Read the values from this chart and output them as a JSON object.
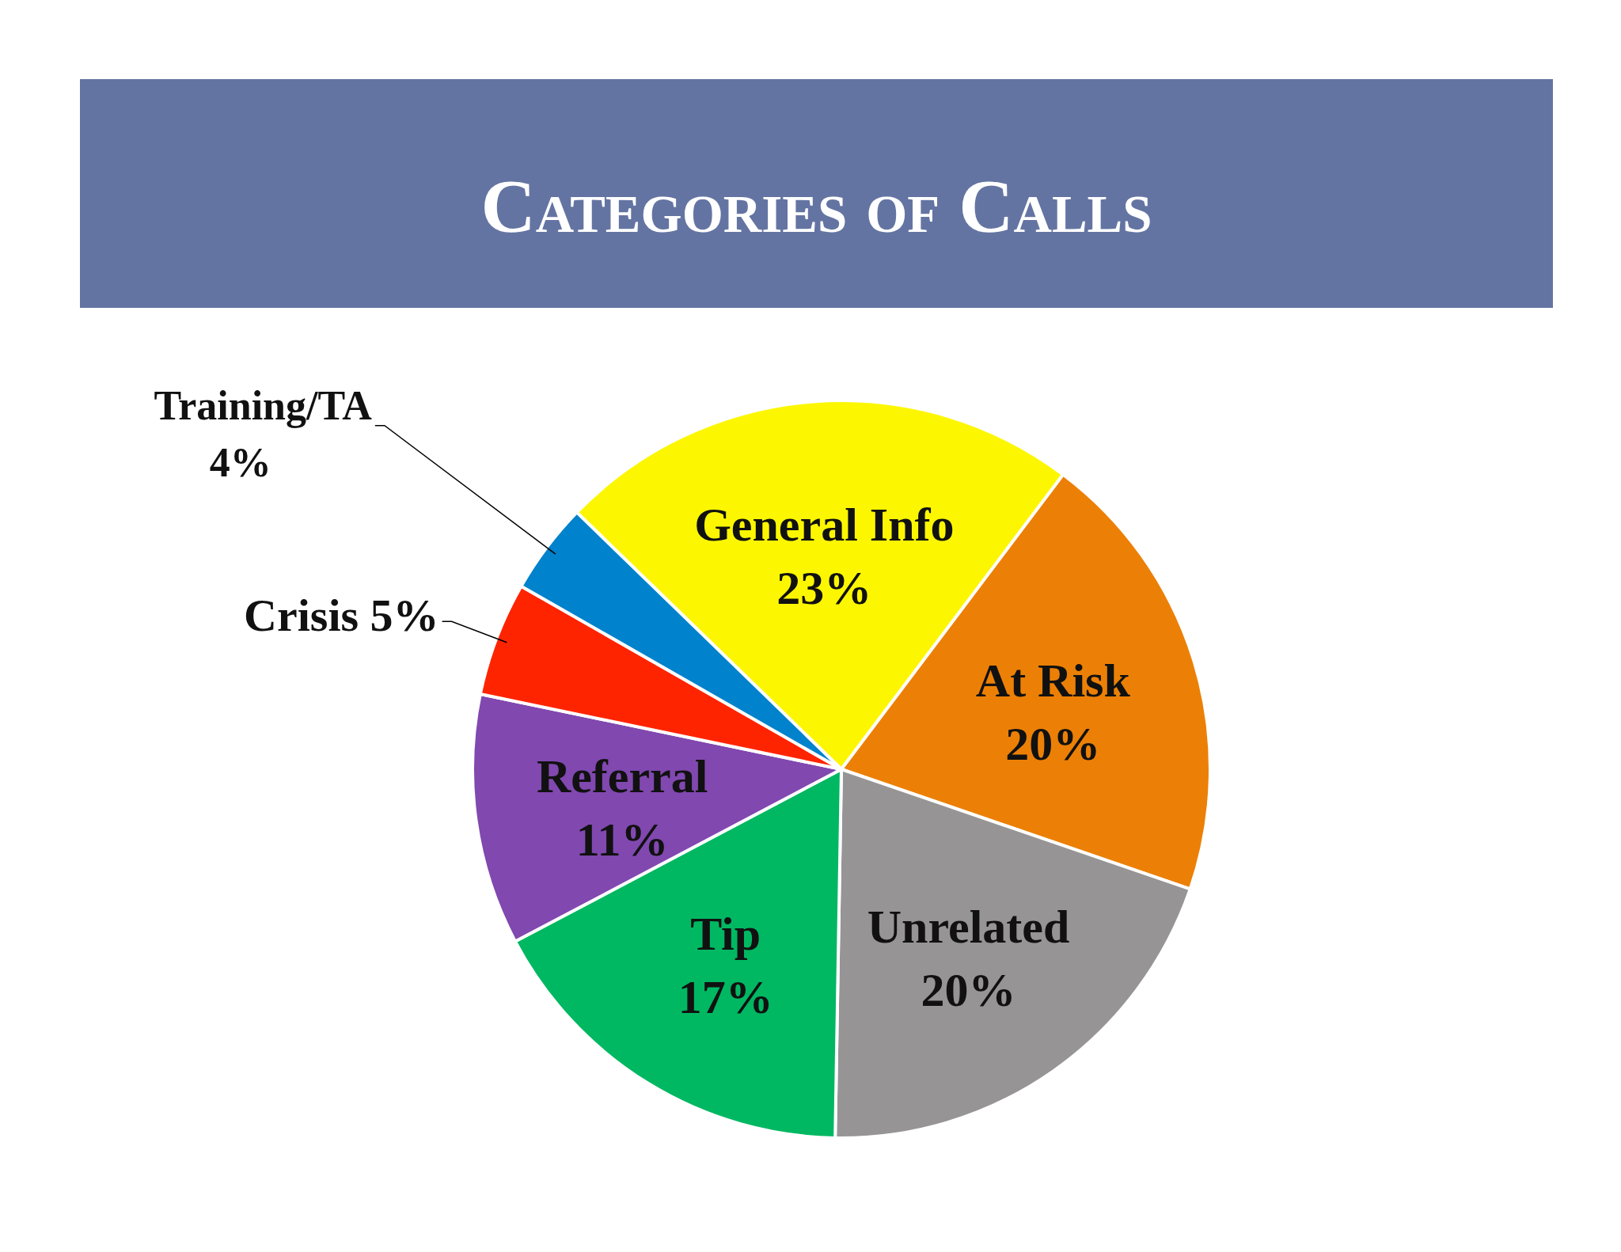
{
  "chart_data": {
    "type": "pie",
    "title": "Categories of Calls",
    "categories": [
      "General Info",
      "At Risk",
      "Unrelated",
      "Tip",
      "Referral",
      "Crisis",
      "Training/TA"
    ],
    "values": [
      23,
      20,
      20,
      17,
      11,
      5,
      4
    ],
    "colors": [
      "#fcf700",
      "#ec8006",
      "#969495",
      "#00b862",
      "#8148b0",
      "#ff2400",
      "#0082cc"
    ],
    "value_labels": [
      "23%",
      "20%",
      "20%",
      "17%",
      "11%",
      "5%",
      "4%"
    ]
  }
}
